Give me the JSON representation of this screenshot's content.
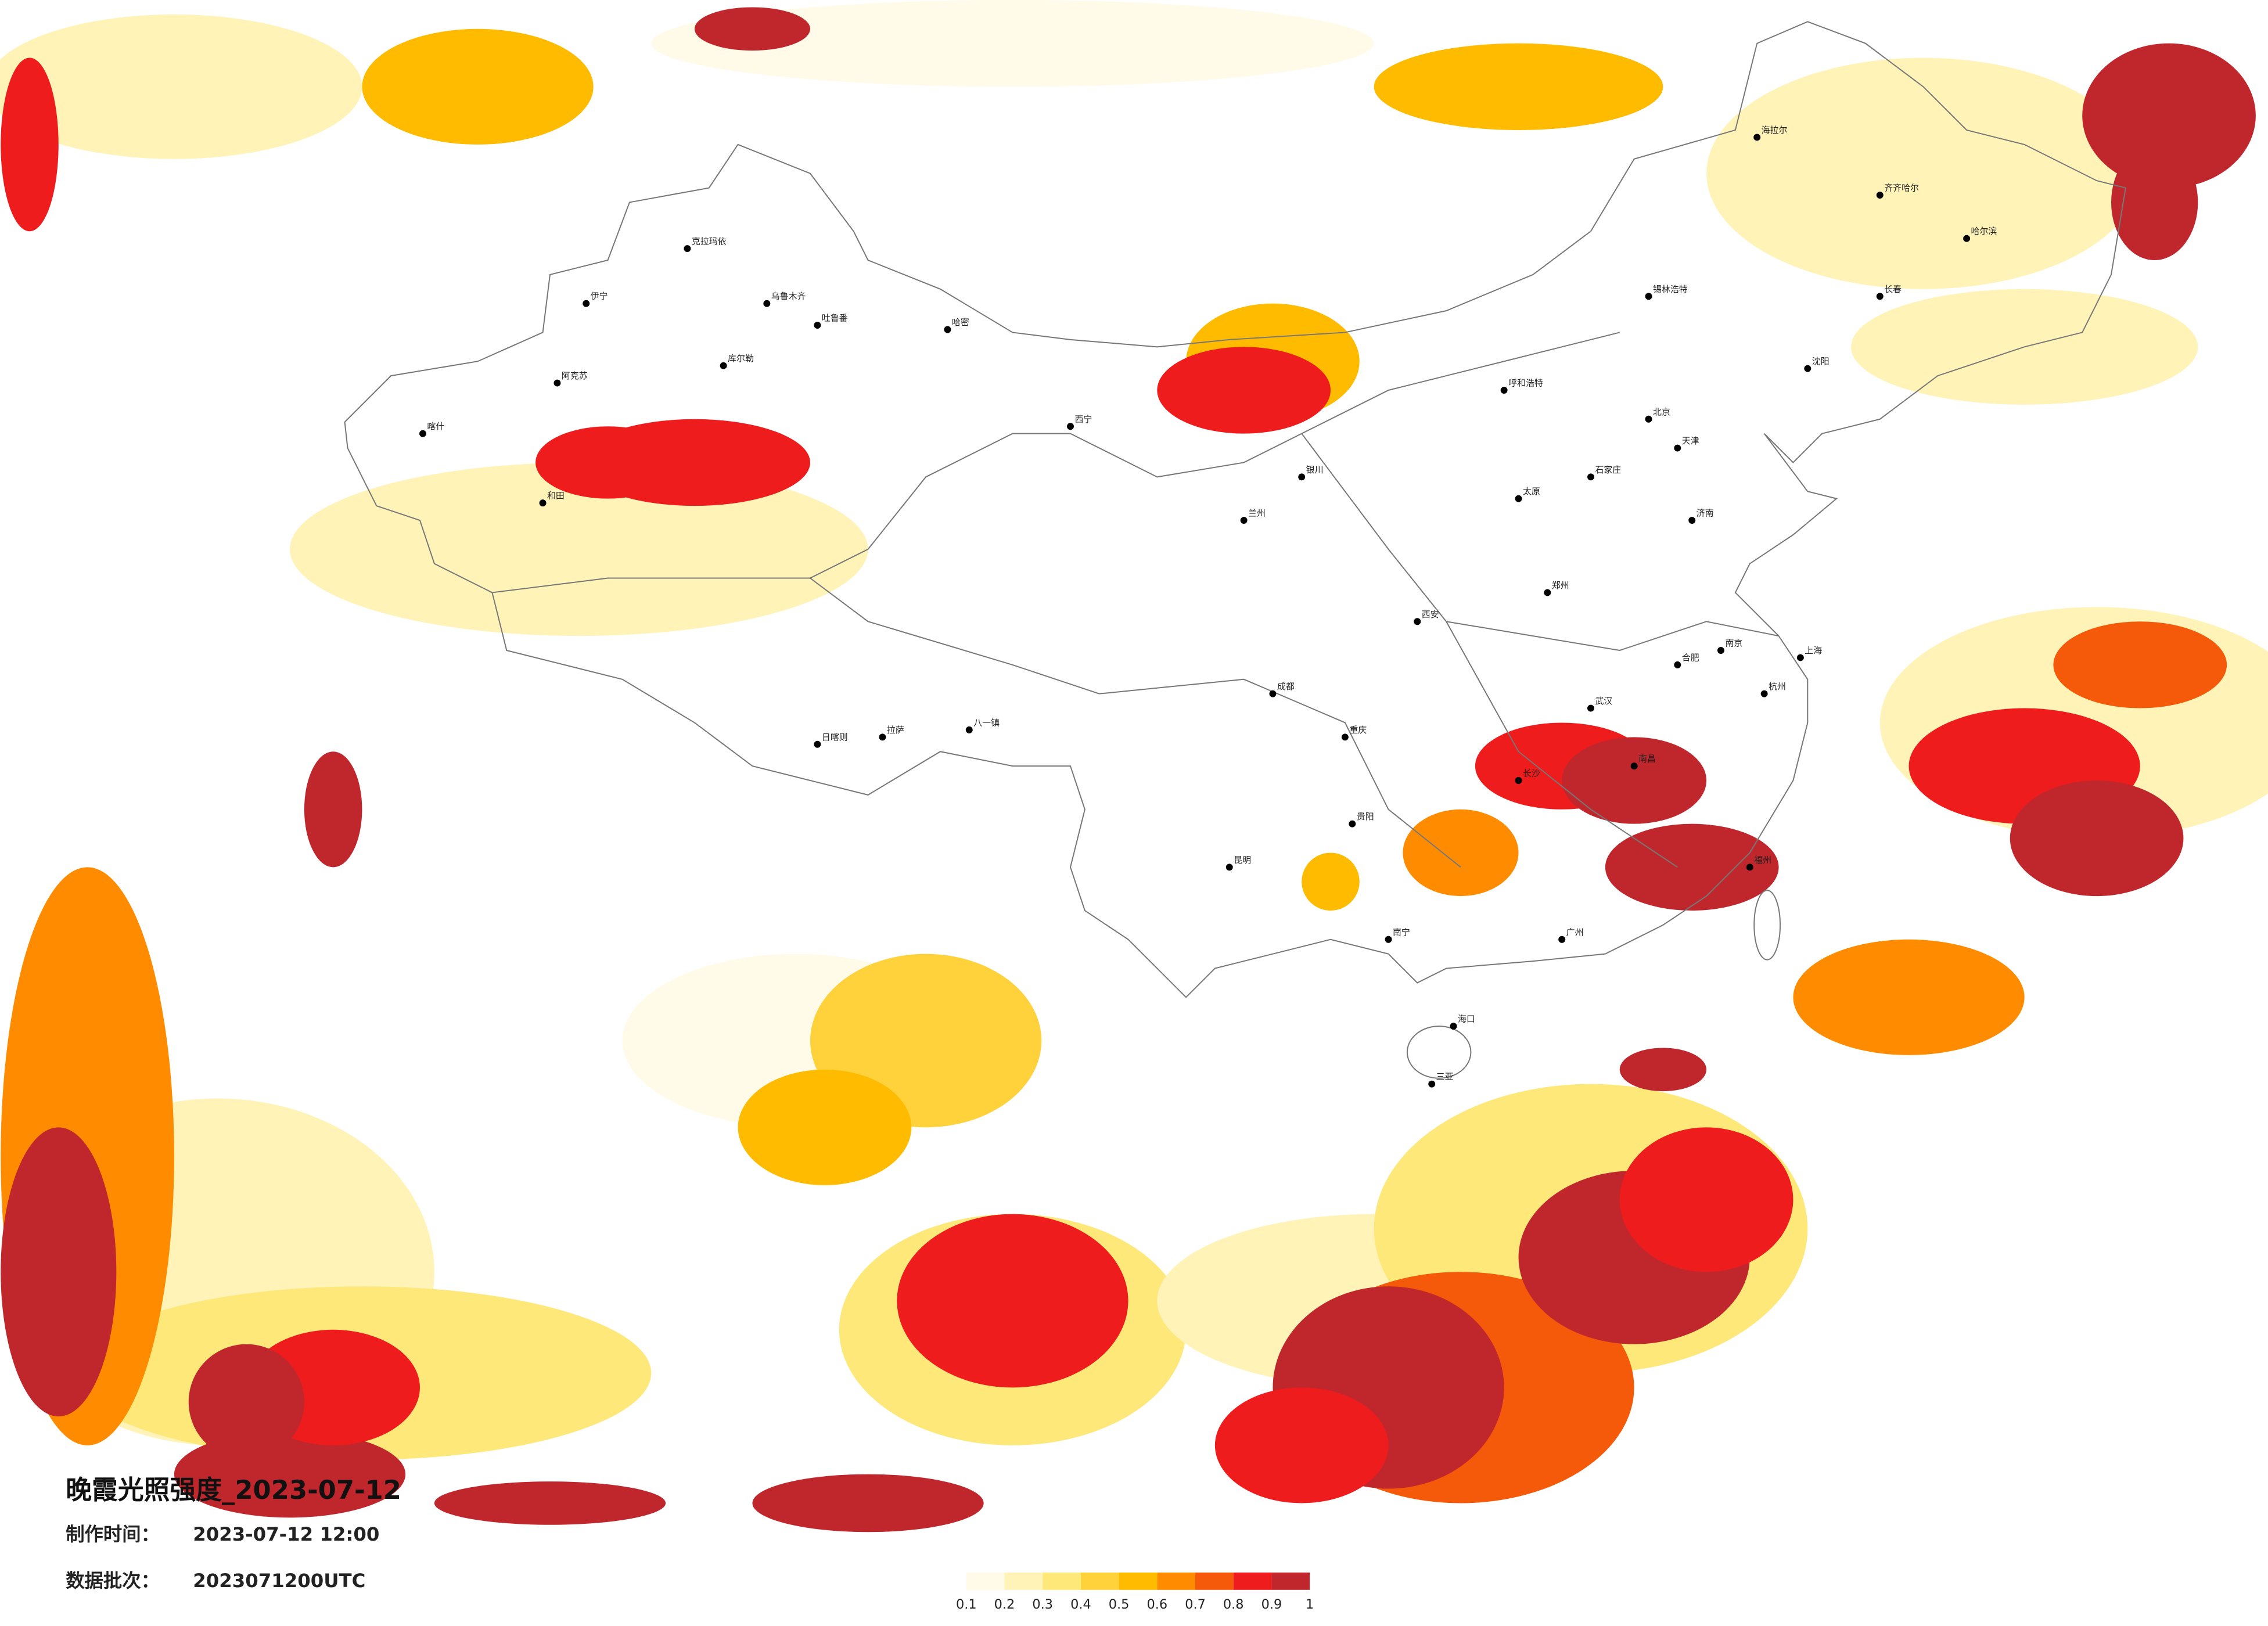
{
  "title": "晚霞光照强度_2023-07-12",
  "made_time_label": "制作时间：",
  "made_time": "2023-07-12 12:00",
  "batch_label": "数据批次：",
  "batch": "2023071200UTC",
  "legend": {
    "ticks": [
      0.1,
      0.2,
      0.3,
      0.4,
      0.5,
      0.6,
      0.7,
      0.8,
      0.9,
      1
    ],
    "colors": [
      "#fffbe8",
      "#fff3b8",
      "#ffe87a",
      "#ffd23c",
      "#ffbb00",
      "#ff8c00",
      "#f55a0a",
      "#ee1c1c",
      "#c0272d"
    ]
  },
  "cities": [
    "克拉玛依",
    "伊宁",
    "乌鲁木齐",
    "吐鲁番",
    "哈密",
    "库尔勒",
    "阿克苏",
    "喀什",
    "和田",
    "西宁",
    "拉萨",
    "日喀则",
    "八一镇",
    "成都",
    "重庆",
    "昆明",
    "贵阳",
    "南宁",
    "广州",
    "长沙",
    "武汉",
    "南昌",
    "福州",
    "杭州",
    "上海",
    "南京",
    "合肥",
    "郑州",
    "西安",
    "兰州",
    "银川",
    "呼和浩特",
    "北京",
    "天津",
    "石家庄",
    "太原",
    "济南",
    "沈阳",
    "长春",
    "哈尔滨",
    "齐齐哈尔",
    "海口",
    "三亚",
    "锡林浩特",
    "海拉尔"
  ]
}
